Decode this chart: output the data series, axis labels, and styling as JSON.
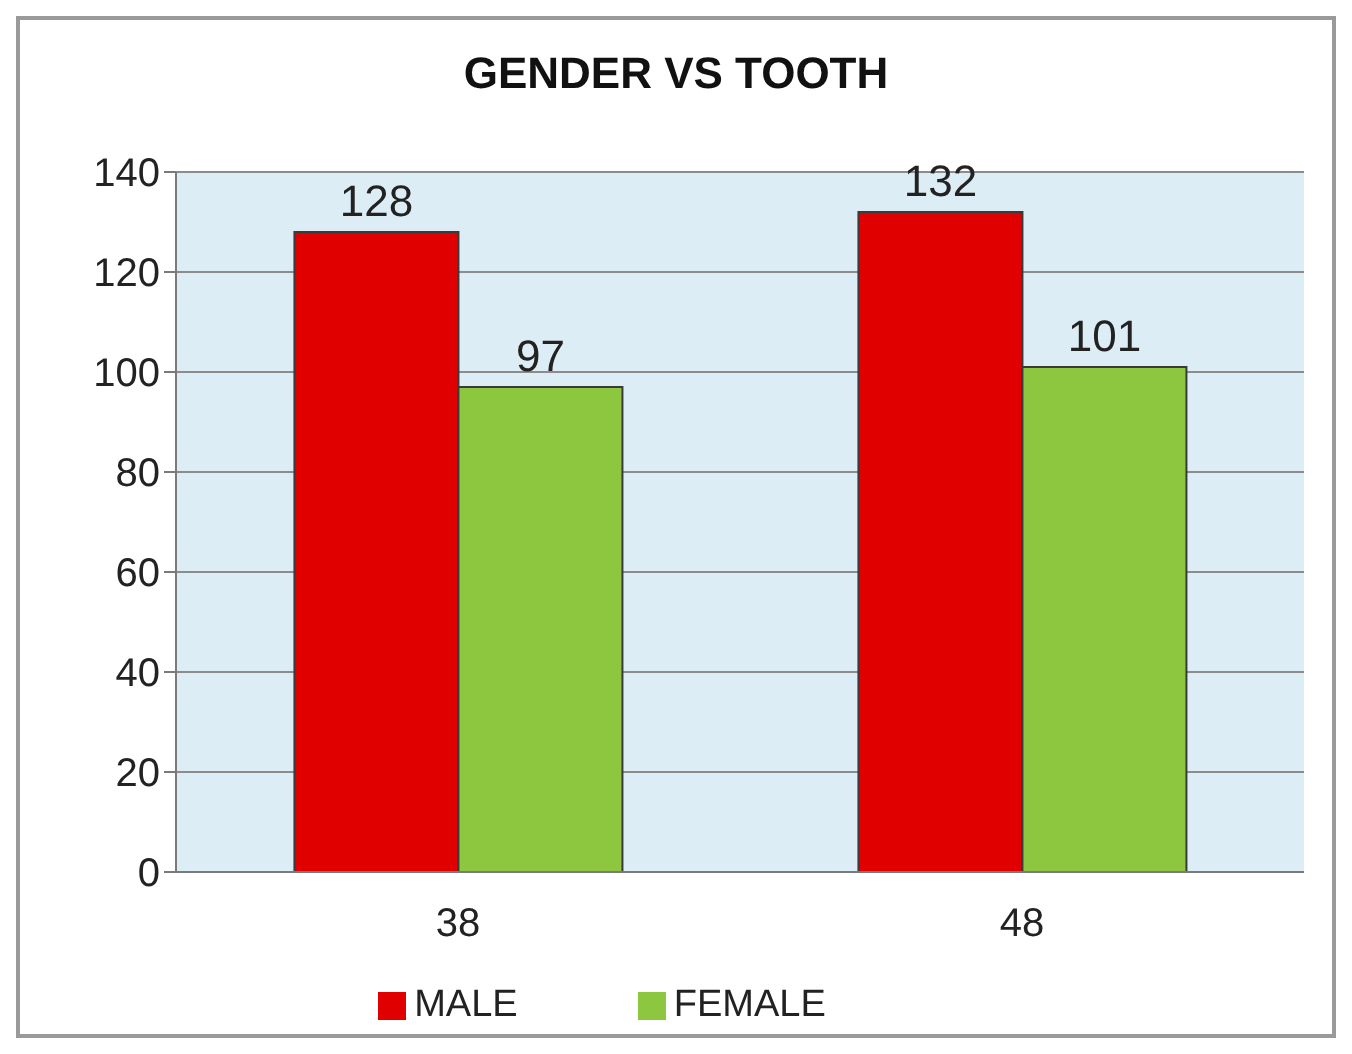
{
  "chart_data": {
    "type": "bar",
    "title": "GENDER VS TOOTH",
    "categories": [
      "38",
      "48"
    ],
    "series": [
      {
        "name": "MALE",
        "color": "#e00000",
        "values": [
          128,
          132
        ]
      },
      {
        "name": "FEMALE",
        "color": "#8dc63f",
        "values": [
          97,
          101
        ]
      }
    ],
    "ylim": [
      0,
      140
    ],
    "yticks": [
      0,
      20,
      40,
      60,
      80,
      100,
      120,
      140
    ],
    "grid": "y",
    "legend": "bottom",
    "data_labels": true
  }
}
